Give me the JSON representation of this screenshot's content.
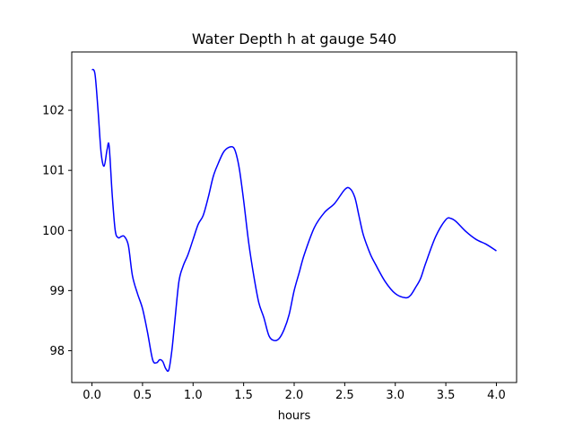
{
  "chart_data": {
    "type": "line",
    "title": "Water Depth h at gauge 540",
    "xlabel": "hours",
    "ylabel": "",
    "xlim": [
      -0.2,
      4.2
    ],
    "ylim": [
      97.47,
      102.97
    ],
    "xticks": [
      0.0,
      0.5,
      1.0,
      1.5,
      2.0,
      2.5,
      3.0,
      3.5,
      4.0
    ],
    "xtick_labels": [
      "0.0",
      "0.5",
      "1.0",
      "1.5",
      "2.0",
      "2.5",
      "3.0",
      "3.5",
      "4.0"
    ],
    "yticks": [
      98,
      99,
      100,
      101,
      102
    ],
    "ytick_labels": [
      "98",
      "99",
      "100",
      "101",
      "102"
    ],
    "grid": false,
    "series": [
      {
        "color": "#0000ff",
        "x": [
          0.0,
          0.03,
          0.06,
          0.09,
          0.12,
          0.15,
          0.17,
          0.2,
          0.23,
          0.26,
          0.29,
          0.32,
          0.36,
          0.4,
          0.45,
          0.5,
          0.55,
          0.6,
          0.64,
          0.67,
          0.7,
          0.73,
          0.76,
          0.79,
          0.82,
          0.86,
          0.9,
          0.95,
          1.0,
          1.05,
          1.1,
          1.15,
          1.2,
          1.25,
          1.3,
          1.35,
          1.4,
          1.43,
          1.46,
          1.5,
          1.55,
          1.6,
          1.65,
          1.7,
          1.75,
          1.8,
          1.85,
          1.9,
          1.95,
          2.0,
          2.05,
          2.1,
          2.2,
          2.3,
          2.4,
          2.5,
          2.55,
          2.6,
          2.64,
          2.68,
          2.72,
          2.76,
          2.8,
          2.9,
          3.0,
          3.1,
          3.15,
          3.2,
          3.25,
          3.3,
          3.4,
          3.5,
          3.55,
          3.6,
          3.7,
          3.8,
          3.9,
          4.0
        ],
        "values": [
          102.68,
          102.6,
          102.0,
          101.3,
          101.07,
          101.35,
          101.4,
          100.6,
          100.0,
          99.88,
          99.9,
          99.9,
          99.75,
          99.25,
          98.95,
          98.7,
          98.3,
          97.85,
          97.8,
          97.85,
          97.82,
          97.7,
          97.68,
          98.0,
          98.5,
          99.15,
          99.4,
          99.6,
          99.85,
          100.1,
          100.25,
          100.55,
          100.9,
          101.12,
          101.3,
          101.38,
          101.38,
          101.25,
          101.0,
          100.5,
          99.8,
          99.25,
          98.8,
          98.55,
          98.25,
          98.17,
          98.2,
          98.35,
          98.6,
          99.0,
          99.3,
          99.6,
          100.05,
          100.3,
          100.45,
          100.68,
          100.7,
          100.55,
          100.25,
          99.95,
          99.75,
          99.58,
          99.45,
          99.15,
          98.95,
          98.88,
          98.92,
          99.05,
          99.2,
          99.45,
          99.9,
          100.18,
          100.2,
          100.15,
          99.98,
          99.85,
          99.77,
          99.66
        ]
      }
    ]
  }
}
